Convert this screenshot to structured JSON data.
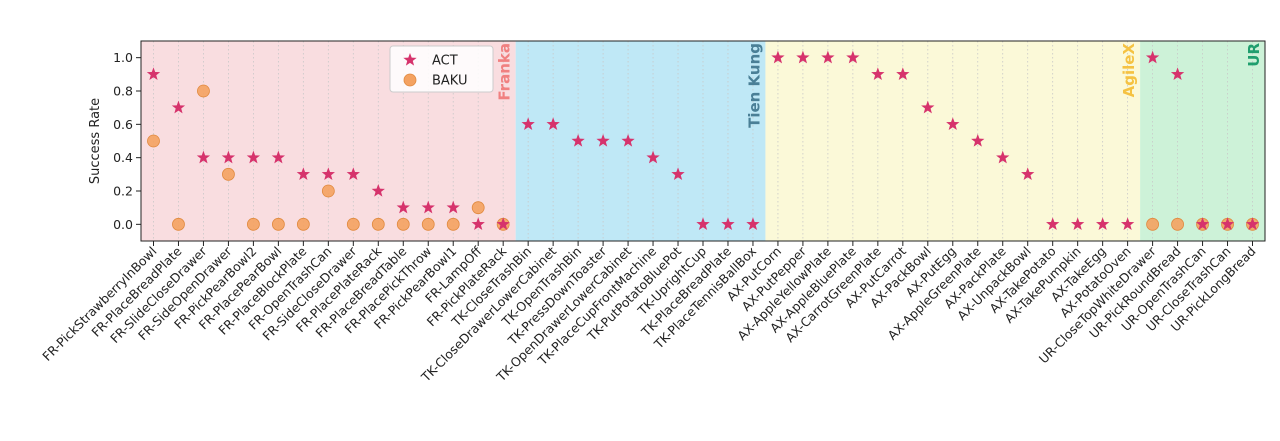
{
  "chart_data": {
    "type": "scatter",
    "ylabel": "Success Rate",
    "xlabel": "",
    "ylim": [
      -0.1,
      1.1
    ],
    "yticks": [
      "0.0",
      "0.2",
      "0.4",
      "0.6",
      "0.8",
      "1.0"
    ],
    "grid": true,
    "legend_position": "top-center",
    "categories": [
      "FR-PickStrawberryInBowl",
      "FR-PlaceBreadPlate",
      "FR-SlideCloseDrawer",
      "FR-SideOpenDrawer",
      "FR-PickPearBowl2",
      "FR-PlacePearBowl",
      "FR-PlaceBlockPlate",
      "FR-OpenTrashCan",
      "FR-SideCloseDrawer",
      "FR-PlacePlateRack",
      "FR-PlaceBreadTable",
      "FR-PlacePickThrow",
      "FR-PickPearBowl1",
      "FR-LampOff",
      "FR-PickPlateRack",
      "TK-CloseTrashBin",
      "TK-CloseDrawerLowerCabinet",
      "TK-OpenTrashBin",
      "TK-PressDownToaster",
      "TK-OpenDrawerLowerCabinet",
      "TK-PlaceCupFrontMachine",
      "TK-PutPotatoBluePot",
      "TK-UprightCup",
      "TK-PlaceBreadPlate",
      "TK-PlaceTennisBallBox",
      "AX-PutCorn",
      "AX-PutPepper",
      "AX-AppleYellowPlate",
      "AX-AppleBluePlate",
      "AX-CarrotGreenPlate",
      "AX-PutCarrot",
      "AX-PackBowl",
      "AX-PutEgg",
      "AX-AppleGreenPlate",
      "AX-PackPlate",
      "AX-UnpackBowl",
      "AX-TakePotato",
      "AX-TakePumpkin",
      "AX-TakeEgg",
      "AX-PotatoOven",
      "UR-CloseTopWhiteDrawer",
      "UR-PickRoundBread",
      "UR-OpenTrashCan",
      "UR-CloseTrashCan",
      "UR-PickLongBread"
    ],
    "series": [
      {
        "name": "ACT",
        "marker": "star",
        "color": "#d6336c",
        "values": [
          0.9,
          0.7,
          0.4,
          0.4,
          0.4,
          0.4,
          0.3,
          0.3,
          0.3,
          0.2,
          0.1,
          0.1,
          0.1,
          0.0,
          0.0,
          0.6,
          0.6,
          0.5,
          0.5,
          0.5,
          0.4,
          0.3,
          0.0,
          0.0,
          0.0,
          1.0,
          1.0,
          1.0,
          1.0,
          0.9,
          0.9,
          0.7,
          0.6,
          0.5,
          0.4,
          0.3,
          0.0,
          0.0,
          0.0,
          0.0,
          1.0,
          0.9,
          0.0,
          0.0,
          0.0
        ]
      },
      {
        "name": "BAKU",
        "marker": "circle",
        "color": "#f4a261",
        "values": [
          0.5,
          0.0,
          0.8,
          0.3,
          0.0,
          0.0,
          0.0,
          0.2,
          0.0,
          0.0,
          0.0,
          0.0,
          0.0,
          0.1,
          0.0,
          null,
          null,
          null,
          null,
          null,
          null,
          null,
          null,
          null,
          null,
          null,
          null,
          null,
          null,
          null,
          null,
          null,
          null,
          null,
          null,
          null,
          null,
          null,
          null,
          null,
          0.0,
          0.0,
          0.0,
          0.0,
          0.0
        ]
      }
    ],
    "regions": [
      {
        "label": "Franka",
        "start": 0,
        "end": 14,
        "fill": "#f9dde0",
        "text_color": "#f08080"
      },
      {
        "label": "Tien Kung",
        "start": 15,
        "end": 24,
        "fill": "#bfe8f6",
        "text_color": "#4a7f96"
      },
      {
        "label": "AgileX",
        "start": 25,
        "end": 39,
        "fill": "#fbf9d8",
        "text_color": "#f5c242"
      },
      {
        "label": "UR",
        "start": 40,
        "end": 44,
        "fill": "#cdf2d8",
        "text_color": "#1f9e6e"
      }
    ]
  }
}
